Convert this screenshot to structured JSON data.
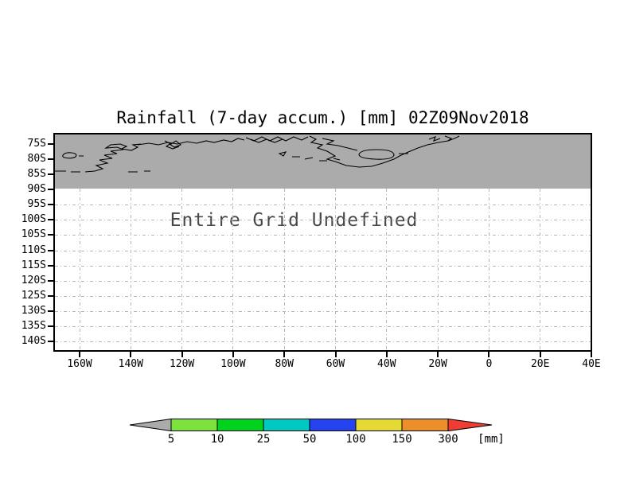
{
  "title": "Rainfall (7-day accum.) [mm] 02Z09Nov2018",
  "undefined_message": "Entire Grid Undefined",
  "y_axis": {
    "tick_labels": [
      "75S",
      "80S",
      "85S",
      "90S",
      "95S",
      "100S",
      "105S",
      "110S",
      "115S",
      "120S",
      "125S",
      "130S",
      "135S",
      "140S"
    ]
  },
  "x_axis": {
    "tick_labels": [
      "160W",
      "140W",
      "120W",
      "100W",
      "80W",
      "60W",
      "40W",
      "20W",
      "0",
      "20E",
      "40E"
    ]
  },
  "map": {
    "shaded_band_color": "#ababab",
    "coastline_color": "#000000"
  },
  "colorbar": {
    "labels": [
      "5",
      "10",
      "25",
      "50",
      "100",
      "150",
      "300"
    ],
    "unit_label": "[mm]",
    "below_min_color": "#ababab",
    "segment_colors": [
      "#7ce33e",
      "#00d21d",
      "#00c9c1",
      "#2543ef",
      "#e5da33",
      "#ec8f2b"
    ],
    "above_max_color": "#ef3d35"
  },
  "chart_data": {
    "type": "heatmap",
    "title": "Rainfall (7-day accum.) [mm] 02Z09Nov2018",
    "x_tick_labels": [
      "160W",
      "140W",
      "120W",
      "100W",
      "80W",
      "60W",
      "40W",
      "20W",
      "0",
      "20E",
      "40E"
    ],
    "y_tick_labels": [
      "75S",
      "80S",
      "85S",
      "90S",
      "95S",
      "100S",
      "105S",
      "110S",
      "115S",
      "120S",
      "125S",
      "130S",
      "135S",
      "140S"
    ],
    "x_range_deg": [
      -170,
      40
    ],
    "y_range_deg_as_labeled": [
      -143,
      -71
    ],
    "grid": true,
    "values": null,
    "status_annotation": "Entire Grid Undefined",
    "shaded_region": "map band from top of plot to 90S with Antarctic coastlines, no data fill",
    "colorbar": {
      "levels": [
        5,
        10,
        25,
        50,
        100,
        150,
        300
      ],
      "unit": "mm",
      "position": "bottom",
      "open_ended": true
    }
  }
}
